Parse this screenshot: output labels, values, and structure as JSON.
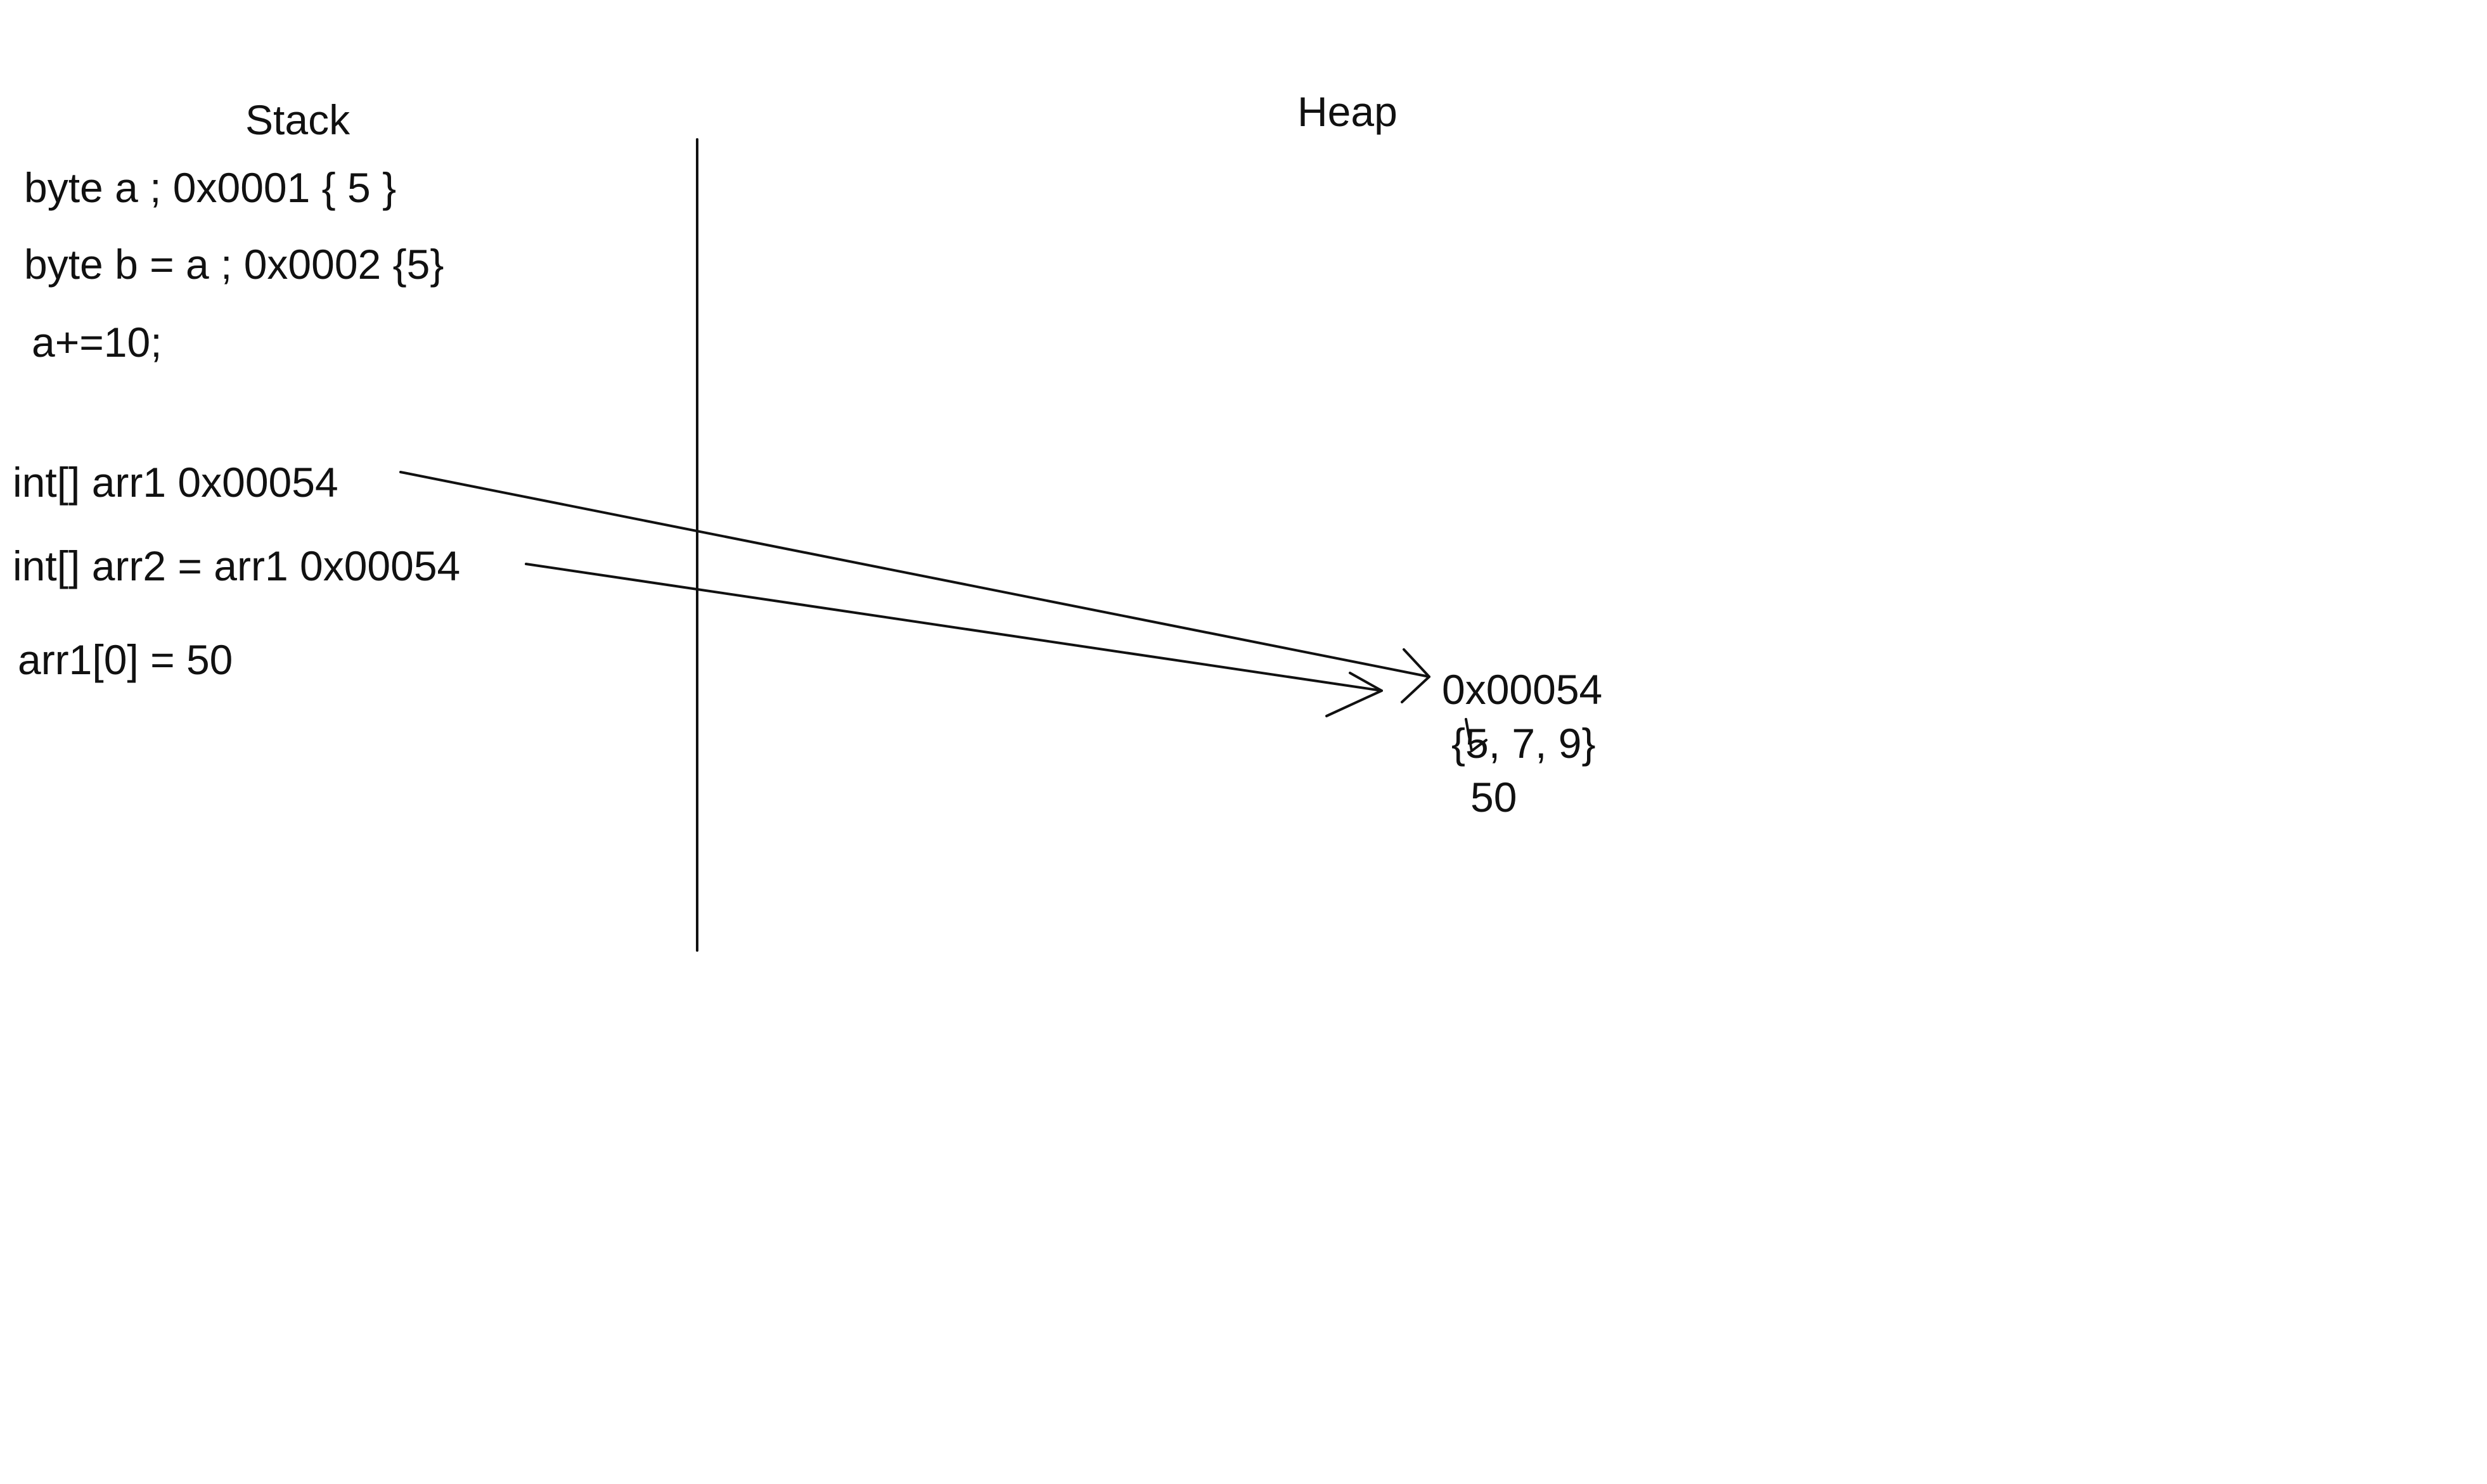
{
  "columns": {
    "stack_title": "Stack",
    "heap_title": "Heap"
  },
  "stack": {
    "lines": [
      "byte a ; 0x0001 { 5 }",
      "byte b = a ; 0x0002 {5}",
      "a+=10;",
      "int[] arr1 0x00054",
      "int[] arr2 = arr1 0x00054",
      "arr1[0] = 50"
    ]
  },
  "heap": {
    "address": "0x00054",
    "array_value": "{5, 7, 9}",
    "replaced_value": "50"
  }
}
